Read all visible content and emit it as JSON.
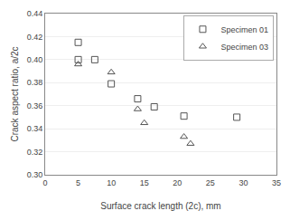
{
  "chart_data": {
    "type": "scatter",
    "xlabel": "Surface crack length (2c), mm",
    "ylabel": "Crack aspect ratio, a/2c",
    "series": [
      {
        "name": "Specimen 01",
        "color": "#555555",
        "marker": "square",
        "x": [
          5,
          5,
          7.5,
          10,
          14,
          16.5,
          21,
          29
        ],
        "values": [
          0.415,
          0.4,
          0.4,
          0.379,
          0.366,
          0.359,
          0.351,
          0.35
        ]
      },
      {
        "name": "Specimen 03",
        "color": "#555555",
        "marker": "triangle",
        "x": [
          5,
          10,
          14,
          15,
          21,
          22
        ],
        "values": [
          0.396,
          0.389,
          0.357,
          0.345,
          0.333,
          0.327
        ]
      }
    ],
    "xlim": [
      0,
      35
    ],
    "ylim": [
      0.3,
      0.44
    ],
    "xticks": [
      0,
      5,
      10,
      15,
      20,
      25,
      30,
      35
    ],
    "yticks": [
      {
        "value": 0.3,
        "label": "0.30"
      },
      0.32,
      0.34,
      0.36,
      0.38,
      {
        "value": 0.4,
        "label": "0.40"
      },
      0.42,
      0.44
    ],
    "grid": "y",
    "legend": "upper right"
  }
}
